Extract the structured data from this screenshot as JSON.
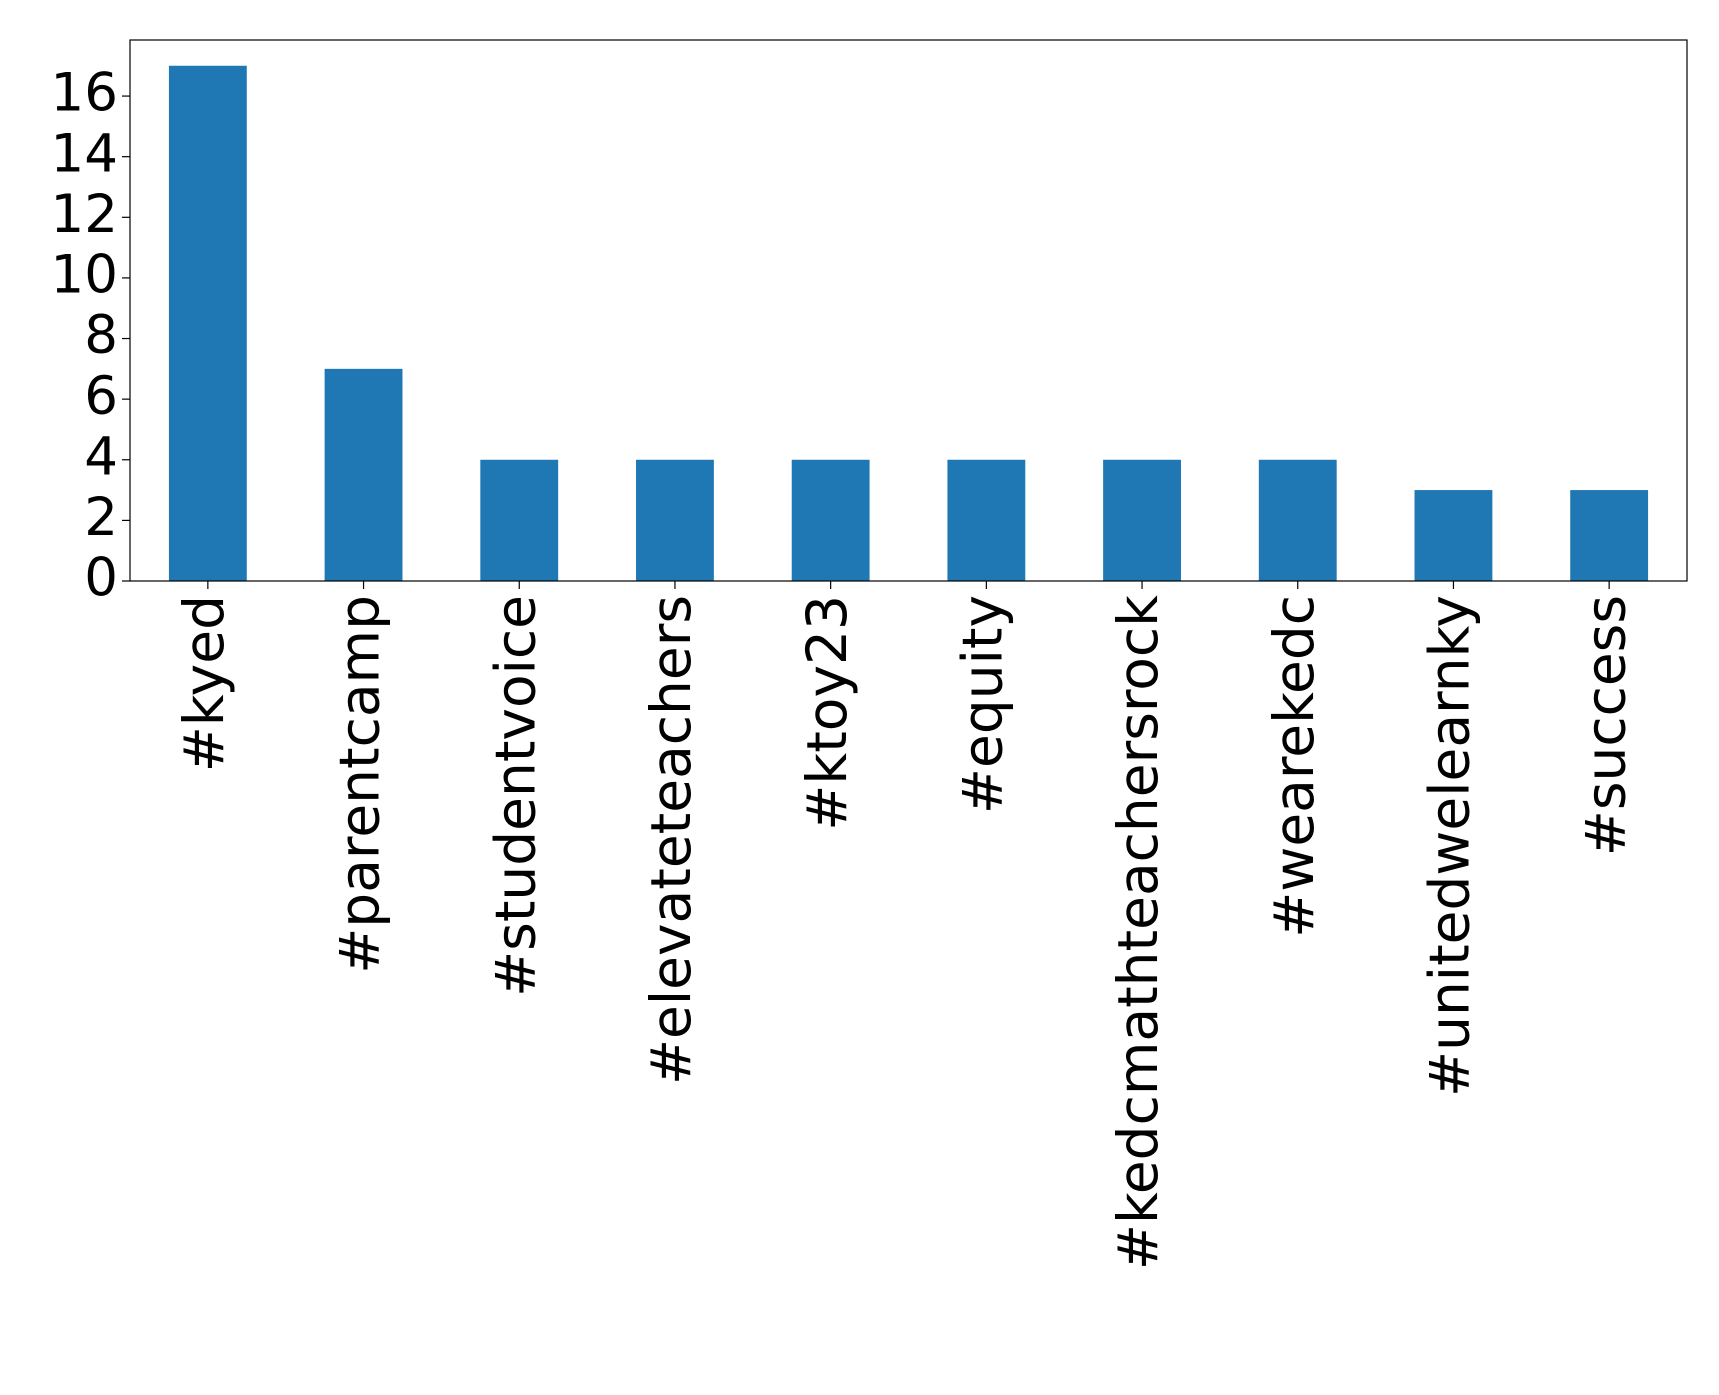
{
  "chart_data": {
    "type": "bar",
    "categories": [
      "#kyed",
      "#parentcamp",
      "#studentvoice",
      "#elevateteachers",
      "#ktoy23",
      "#equity",
      "#kedcmathteachersrock",
      "#wearekedc",
      "#unitedwelearnky",
      "#success"
    ],
    "values": [
      17,
      7,
      4,
      4,
      4,
      4,
      4,
      4,
      3,
      3
    ],
    "color": "#1f77b4",
    "ylim": [
      0,
      17.85
    ],
    "yticks": [
      0,
      2,
      4,
      6,
      8,
      10,
      12,
      14,
      16
    ],
    "grid": false
  }
}
